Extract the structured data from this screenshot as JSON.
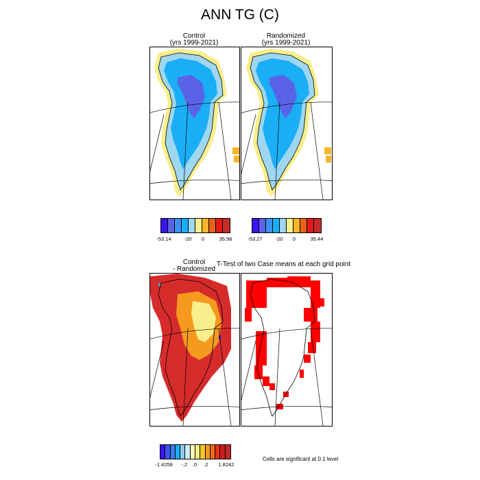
{
  "title": "ANN TG (C)",
  "panels": {
    "control": {
      "line1": "Control",
      "line2": "(yrs 1999-2021)"
    },
    "randomized": {
      "line1": "Randomized",
      "line2": "(yrs 1999-2021)"
    },
    "difference": {
      "line1": "Control",
      "line2": "- Randomized"
    },
    "ttest": {
      "title": "T-Test of two Case means at each grid point"
    }
  },
  "colorbars": {
    "control": {
      "colors": [
        "#3b14f0",
        "#5a63e8",
        "#3c92f0",
        "#1aaef5",
        "#9fd6f0",
        "#f8ef8c",
        "#f5b52a",
        "#e8631a",
        "#e31a1c",
        "#c62b2b"
      ],
      "labels": [
        "-53.14",
        "-20",
        "0",
        "35.96"
      ]
    },
    "randomized": {
      "colors": [
        "#3b14f0",
        "#5a63e8",
        "#3c92f0",
        "#1aaef5",
        "#9fd6f0",
        "#f8ef8c",
        "#f5b52a",
        "#e8631a",
        "#e31a1c",
        "#c62b2b"
      ],
      "labels": [
        "-53.27",
        "-20",
        "0",
        "35.44"
      ]
    },
    "difference": {
      "colors": [
        "#3b14f0",
        "#3c55e8",
        "#3c7df0",
        "#1aaef5",
        "#8ccaf5",
        "#cdeaf5",
        "#fbf7b0",
        "#f8ef8c",
        "#f5c82a",
        "#f59a1f",
        "#ee6a19",
        "#e3341b",
        "#d01c1c",
        "#c02a2a"
      ],
      "labels": [
        "-1.4258",
        "-.2",
        ".0",
        ".2",
        "1.8242"
      ]
    }
  },
  "footnote": "Cells are significant at 0.1 level",
  "legend_colors": {
    "ice_core": "#5a63e8",
    "ice_interior": "#1aaef5",
    "ice_margin": "#9fd6f0",
    "coast_warm": "#f8ef8c",
    "tundra_orange": "#f5b52a",
    "diff_base": "#d62b2b",
    "diff_mid": "#f59a1f",
    "diff_light": "#f8ef8c",
    "signif": "#ff0000"
  }
}
